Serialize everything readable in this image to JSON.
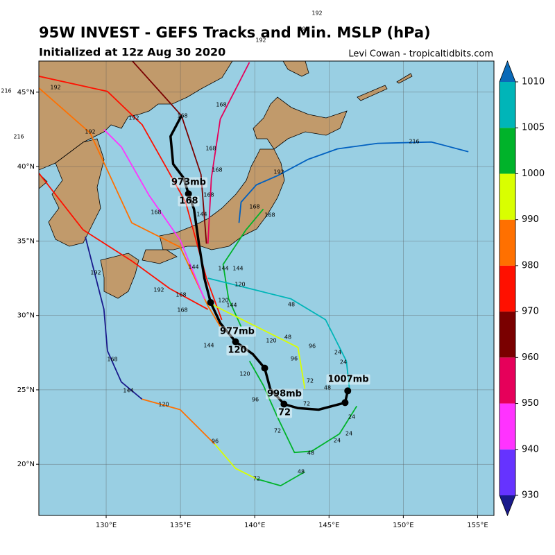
{
  "header": {
    "title": "95W INVEST - GEFS Tracks and Min. MSLP (hPa)",
    "subtitle": "Initialized at 12z Aug 30 2020",
    "credit": "Levi Cowan - tropicaltidbits.com"
  },
  "map": {
    "lonlim": [
      125.47,
      156.1
    ],
    "latlim": [
      16.56,
      47.09
    ],
    "lonticks": [
      {
        "value": 130,
        "label": "130°E"
      },
      {
        "value": 135,
        "label": "135°E"
      },
      {
        "value": 140,
        "label": "140°E"
      },
      {
        "value": 145,
        "label": "145°E"
      },
      {
        "value": 150,
        "label": "150°E"
      },
      {
        "value": 155,
        "label": "155°E"
      }
    ],
    "latticks": [
      {
        "value": 20,
        "label": "20°N"
      },
      {
        "value": 25,
        "label": "25°N"
      },
      {
        "value": 30,
        "label": "30°N"
      },
      {
        "value": 35,
        "label": "35°N"
      },
      {
        "value": 40,
        "label": "40°N"
      },
      {
        "value": 45,
        "label": "45°N"
      }
    ],
    "grid": true,
    "tracks": [
      {
        "color": "#0060c0",
        "lon": [
          138.94,
          139.08,
          140.11,
          141.51,
          143.6,
          145.56,
          148.27,
          151.9,
          154.38
        ],
        "lat": [
          36.22,
          37.61,
          38.77,
          39.38,
          40.49,
          41.19,
          41.56,
          41.65,
          41.0
        ]
      },
      {
        "color": "#ff1000",
        "lon": [
          125.47,
          130.09,
          132.42,
          134.05,
          135.35,
          136.75,
          137.78
        ],
        "lat": [
          46.07,
          45.05,
          42.82,
          39.93,
          37.61,
          32.5,
          29.71
        ]
      },
      {
        "color": "#ff7000",
        "lon": [
          125.47,
          128.92,
          131.72,
          134.98,
          136.85,
          137.68
        ],
        "lat": [
          45.28,
          42.26,
          36.22,
          34.59,
          30.64,
          29.25
        ]
      },
      {
        "color": "#ff1000",
        "lon": [
          125.47,
          128.45,
          131.72,
          134.28,
          136.85
        ],
        "lat": [
          39.56,
          35.75,
          33.66,
          31.8,
          30.41
        ]
      },
      {
        "color": "#1a1a8c",
        "lon": [
          128.6,
          129.85,
          130.09,
          131.02,
          132.42
        ],
        "lat": [
          35.29,
          30.41,
          27.62,
          25.53,
          24.37
        ]
      },
      {
        "color": "#ff7000",
        "lon": [
          132.42,
          134.98,
          137.31
        ],
        "lat": [
          24.37,
          23.67,
          21.35
        ]
      },
      {
        "color": "#d9ff00",
        "lon": [
          137.31,
          138.71,
          140.11
        ],
        "lat": [
          21.35,
          19.72,
          19.02
        ]
      },
      {
        "color": "#00b32a",
        "lon": [
          140.11,
          141.74,
          143.37
        ],
        "lat": [
          19.02,
          18.56,
          19.49
        ]
      },
      {
        "color": "#ff33ff",
        "lon": [
          129.85,
          131.02,
          132.88,
          134.98,
          136.61
        ],
        "lat": [
          42.49,
          41.33,
          38.08,
          35.06,
          31.11
        ]
      },
      {
        "color": "#00b32a",
        "lon": [
          146.87,
          145.7,
          143.84,
          142.67,
          141.51,
          140.58,
          139.65
        ],
        "lat": [
          23.91,
          22.04,
          20.88,
          20.79,
          23.21,
          25.3,
          26.93
        ]
      },
      {
        "color": "#00b32a",
        "lon": [
          139.08,
          138.24,
          137.87,
          139.41,
          140.58
        ],
        "lat": [
          29.25,
          31.11,
          33.43,
          35.75,
          37.15
        ]
      },
      {
        "color": "#00b5b8",
        "lon": [
          136.85,
          142.44,
          144.77,
          146.17,
          146.4
        ],
        "lat": [
          32.5,
          31.11,
          29.71,
          26.93,
          24.83
        ]
      },
      {
        "color": "#d9ff00",
        "lon": [
          136.85,
          139.18,
          141.97,
          142.91,
          143.37
        ],
        "lat": [
          30.87,
          29.71,
          28.32,
          27.85,
          25.07
        ]
      },
      {
        "color": "#7a0000",
        "lon": [
          131.72,
          135.07,
          136.38,
          136.75
        ],
        "lat": [
          47.14,
          43.42,
          39.47,
          34.82
        ]
      },
      {
        "color": "#e6005a",
        "lon": [
          139.64,
          137.68,
          137.08,
          136.85
        ],
        "lat": [
          47.0,
          43.19,
          39.24,
          34.82
        ]
      }
    ],
    "mean_track": {
      "color": "#000000",
      "lon": [
        146.26,
        146.08,
        144.3,
        142.91,
        141.97,
        141.04,
        140.67,
        139.88,
        138.71,
        137.68,
        137.03,
        136.61,
        136.24,
        135.91,
        135.54,
        135.21,
        134.51,
        134.33,
        135.07
      ],
      "lat": [
        24.93,
        24.14,
        23.67,
        23.77,
        24.04,
        25.07,
        26.46,
        27.39,
        28.23,
        29.48,
        30.87,
        32.5,
        34.82,
        37.15,
        38.17,
        39.24,
        40.17,
        42.03,
        43.42
      ],
      "markers": {
        "lon": [
          146.26,
          146.08,
          141.97,
          140.67,
          138.71,
          137.03,
          135.54
        ],
        "lat": [
          24.93,
          24.14,
          24.04,
          26.46,
          28.23,
          30.87,
          38.17
        ]
      }
    },
    "annotations": [
      "1007mb",
      "998mb",
      "72",
      "977mb",
      "120",
      "973mb",
      "168"
    ],
    "hour_labels": [
      216,
      216,
      216,
      192,
      192,
      192,
      192,
      192,
      192,
      192,
      192,
      192,
      168,
      168,
      168,
      168,
      168,
      168,
      168,
      168,
      168,
      168,
      168,
      144,
      144,
      144,
      144,
      144,
      144,
      144,
      120,
      120,
      120,
      120,
      120,
      96,
      96,
      96,
      96,
      72,
      72,
      72,
      72,
      48,
      48,
      48,
      48,
      48,
      24,
      24,
      24,
      24,
      24
    ]
  },
  "colorbar": {
    "levels": [
      930,
      940,
      950,
      960,
      970,
      980,
      990,
      1000,
      1005,
      1010
    ],
    "colors": [
      "#1a1a8c",
      "#6633ff",
      "#ff33ff",
      "#e6005a",
      "#7a0000",
      "#ff1000",
      "#ff7000",
      "#d9ff00",
      "#00b32a",
      "#00b5b8",
      "#0a6ab8"
    ]
  }
}
